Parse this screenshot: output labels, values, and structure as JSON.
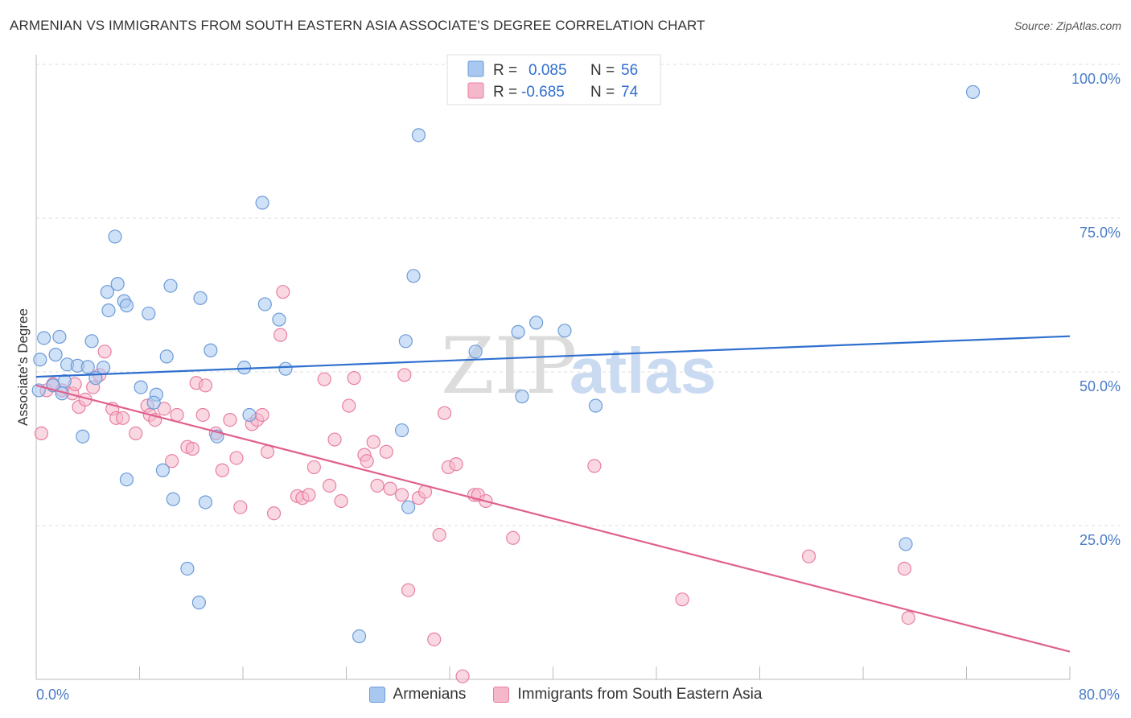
{
  "title": "ARMENIAN VS IMMIGRANTS FROM SOUTH EASTERN ASIA ASSOCIATE'S DEGREE CORRELATION CHART",
  "source": "Source: ZipAtlas.com",
  "watermark": {
    "zip": "ZIP",
    "atlas": "atlas"
  },
  "legend": {
    "r_label": "R =",
    "n_label": "N =",
    "series1": {
      "r": "0.085",
      "n": "56"
    },
    "series2": {
      "r": "-0.685",
      "n": "74"
    }
  },
  "colors": {
    "blue_fill": "#a8c8f0",
    "blue_stroke": "#6c9bd8",
    "blue_line": "#2f6fcf",
    "pink_fill": "#f5b8cb",
    "pink_stroke": "#e87fa2",
    "pink_line": "#e0608e",
    "tick_text": "#4a7cc7",
    "grid": "#dddddd"
  },
  "chart_data": {
    "type": "scatter",
    "title": "ARMENIAN VS IMMIGRANTS FROM SOUTH EASTERN ASIA ASSOCIATE'S DEGREE CORRELATION CHART",
    "xlabel": "",
    "ylabel": "Associate's Degree",
    "xlim": [
      0,
      80
    ],
    "ylim": [
      0,
      105
    ],
    "x_tick_labels": [
      "0.0%",
      "80.0%"
    ],
    "y_ticks": [
      25,
      50,
      75,
      100
    ],
    "y_tick_labels": [
      "25.0%",
      "50.0%",
      "75.0%",
      "100.0%"
    ],
    "grid": true,
    "legend_position": "bottom",
    "series": [
      {
        "name": "Armenians",
        "color": "#a8c8f0",
        "r": 0.085,
        "n": 56,
        "trend": {
          "x": [
            0,
            80
          ],
          "y": [
            49.2,
            55.8
          ]
        },
        "points": [
          [
            0.6,
            55.5
          ],
          [
            1.8,
            55.7
          ],
          [
            1.5,
            52.8
          ],
          [
            2.4,
            51.2
          ],
          [
            3.2,
            51
          ],
          [
            4,
            50.8
          ],
          [
            5.2,
            50.7
          ],
          [
            4.3,
            55
          ],
          [
            2.2,
            48.5
          ],
          [
            1.3,
            47.8
          ],
          [
            2,
            46.5
          ],
          [
            4.6,
            49
          ],
          [
            5.6,
            60
          ],
          [
            5.5,
            63
          ],
          [
            6.3,
            64.3
          ],
          [
            6.8,
            61.5
          ],
          [
            7,
            60.8
          ],
          [
            8.7,
            59.5
          ],
          [
            10.4,
            64
          ],
          [
            12.7,
            62
          ],
          [
            13.5,
            53.5
          ],
          [
            10.1,
            52.5
          ],
          [
            6.1,
            72
          ],
          [
            8.1,
            47.5
          ],
          [
            9.3,
            46.3
          ],
          [
            9.1,
            45
          ],
          [
            3.6,
            39.5
          ],
          [
            9.8,
            34
          ],
          [
            7,
            32.5
          ],
          [
            10.6,
            29.3
          ],
          [
            13.1,
            28.8
          ],
          [
            11.7,
            18
          ],
          [
            12.6,
            12.5
          ],
          [
            17.5,
            77.5
          ],
          [
            17.7,
            61
          ],
          [
            18.8,
            58.5
          ],
          [
            19.3,
            50.5
          ],
          [
            16.1,
            50.7
          ],
          [
            16.5,
            43
          ],
          [
            14,
            39.5
          ],
          [
            29.2,
            65.6
          ],
          [
            28.3,
            40.5
          ],
          [
            28.8,
            28
          ],
          [
            25,
            7
          ],
          [
            29.6,
            88.5
          ],
          [
            28.6,
            55
          ],
          [
            34,
            53.3
          ],
          [
            37.3,
            56.5
          ],
          [
            37.6,
            46
          ],
          [
            38.7,
            58
          ],
          [
            40.9,
            56.7
          ],
          [
            43.3,
            44.5
          ],
          [
            67.3,
            22
          ],
          [
            72.5,
            95.5
          ],
          [
            0.3,
            52
          ],
          [
            0.2,
            47
          ]
        ]
      },
      {
        "name": "Immigrants from South Eastern Asia",
        "color": "#f5b8cb",
        "r": -0.685,
        "n": 74,
        "trend": {
          "x": [
            0,
            80
          ],
          "y": [
            47.8,
            4.5
          ]
        },
        "points": [
          [
            0.4,
            40
          ],
          [
            0.8,
            47
          ],
          [
            1.3,
            48
          ],
          [
            2,
            47
          ],
          [
            2.8,
            46.5
          ],
          [
            3,
            48
          ],
          [
            4.4,
            47.5
          ],
          [
            3.3,
            44.3
          ],
          [
            3.8,
            45.5
          ],
          [
            4.9,
            49.5
          ],
          [
            5.3,
            53.3
          ],
          [
            5.9,
            44
          ],
          [
            6.2,
            42.5
          ],
          [
            6.7,
            42.5
          ],
          [
            7.7,
            40
          ],
          [
            8.6,
            44.5
          ],
          [
            8.8,
            43
          ],
          [
            9.2,
            42.2
          ],
          [
            9.9,
            44
          ],
          [
            10.5,
            35.5
          ],
          [
            10.9,
            43
          ],
          [
            11.7,
            37.8
          ],
          [
            12.1,
            37.5
          ],
          [
            12.4,
            48.2
          ],
          [
            13.1,
            47.8
          ],
          [
            12.9,
            43
          ],
          [
            13.9,
            40
          ],
          [
            14.4,
            34
          ],
          [
            15,
            42.2
          ],
          [
            15.5,
            36
          ],
          [
            15.8,
            28
          ],
          [
            16.7,
            41.5
          ],
          [
            17.1,
            42.2
          ],
          [
            17.5,
            43
          ],
          [
            17.9,
            37
          ],
          [
            18.4,
            27
          ],
          [
            18.9,
            56
          ],
          [
            19.1,
            63
          ],
          [
            20.2,
            29.8
          ],
          [
            20.6,
            29.5
          ],
          [
            21.1,
            30
          ],
          [
            21.5,
            34.5
          ],
          [
            22.3,
            48.8
          ],
          [
            22.7,
            31.5
          ],
          [
            23.1,
            39
          ],
          [
            23.6,
            29
          ],
          [
            24.2,
            44.5
          ],
          [
            24.6,
            49
          ],
          [
            25.4,
            36.5
          ],
          [
            25.6,
            35.5
          ],
          [
            26.4,
            31.5
          ],
          [
            27.1,
            37
          ],
          [
            27.4,
            31
          ],
          [
            28.3,
            30
          ],
          [
            28.5,
            49.5
          ],
          [
            28.8,
            14.5
          ],
          [
            29.6,
            29.5
          ],
          [
            30.1,
            30.5
          ],
          [
            30.8,
            6.5
          ],
          [
            31.2,
            23.5
          ],
          [
            31.6,
            43.3
          ],
          [
            31.9,
            34.5
          ],
          [
            32.5,
            35
          ],
          [
            33,
            0.5
          ],
          [
            33.9,
            30
          ],
          [
            34.2,
            30
          ],
          [
            34.8,
            29
          ],
          [
            36.9,
            23
          ],
          [
            43.2,
            34.7
          ],
          [
            50,
            13
          ],
          [
            59.8,
            20
          ],
          [
            67.2,
            18
          ],
          [
            67.5,
            10
          ],
          [
            26.1,
            38.6
          ]
        ]
      }
    ]
  }
}
